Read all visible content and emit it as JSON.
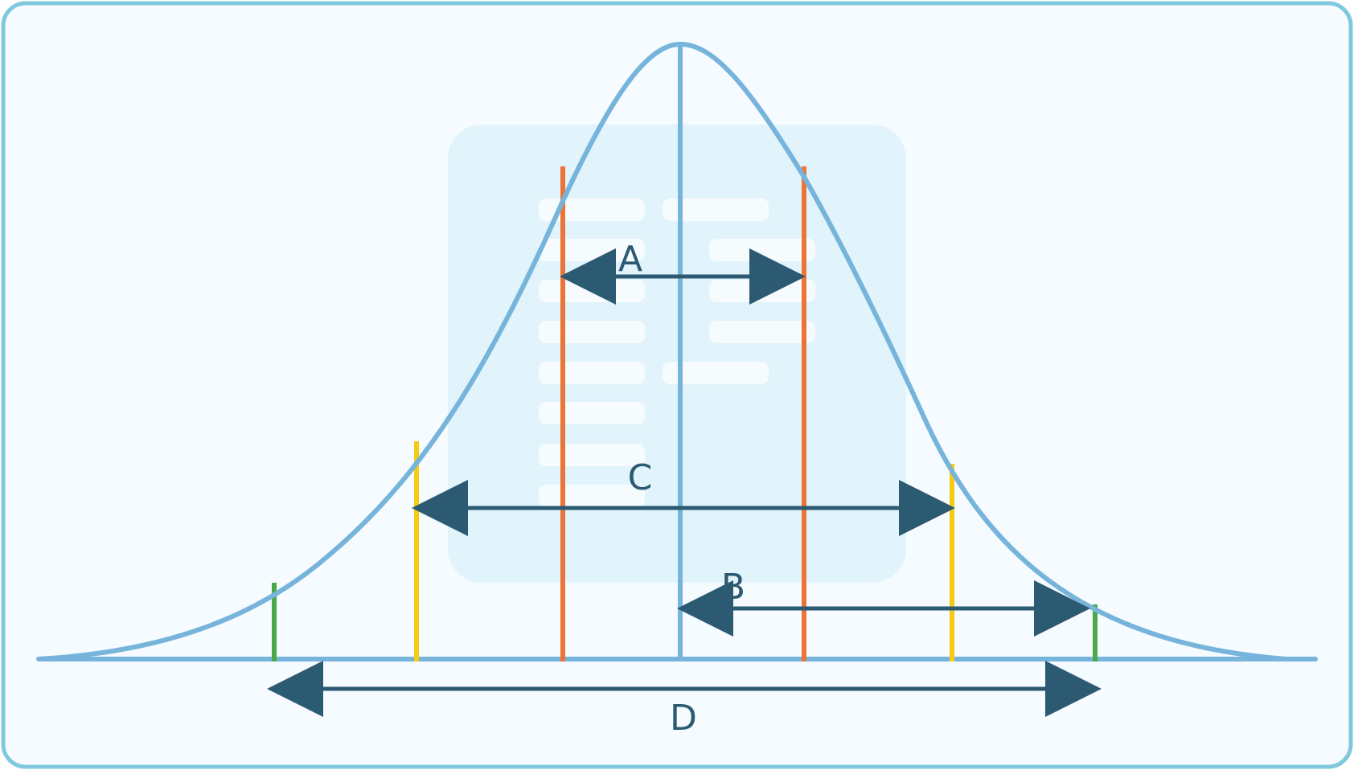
{
  "diagram": {
    "labels": {
      "a": "A",
      "b": "B",
      "c": "C",
      "d": "D"
    },
    "colors": {
      "background": "#f5fbfe",
      "border": "#7fc8de",
      "curve": "#77b4dc",
      "mean_line": "#77b4dc",
      "orange": "#ec7436",
      "yellow": "#f7cb14",
      "green": "#4aa84a",
      "arrow": "#2c5a72",
      "watermark_panel": "#dff3fb",
      "watermark_bar": "#f7fcff"
    }
  }
}
